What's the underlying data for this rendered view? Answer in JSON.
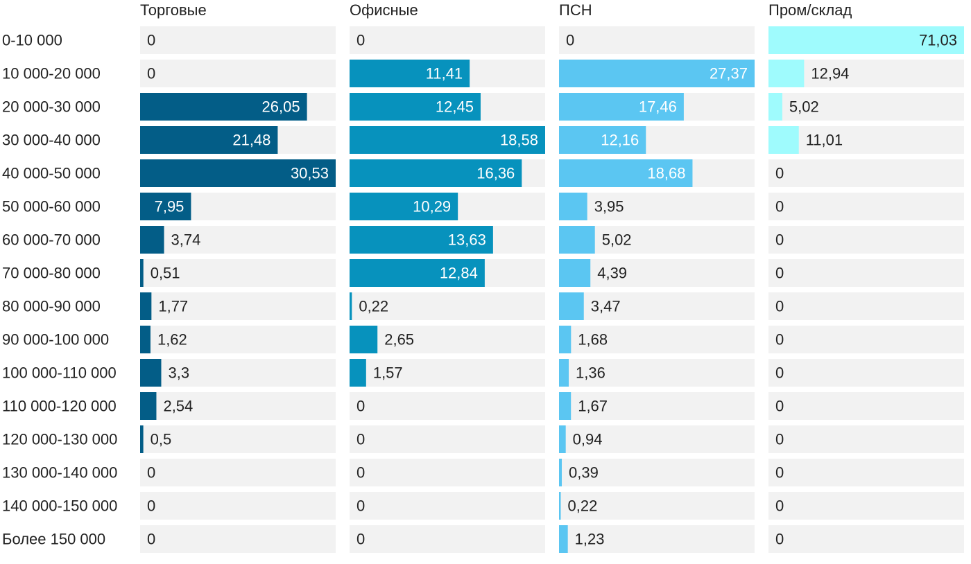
{
  "chart_data": {
    "type": "bar",
    "orientation": "horizontal",
    "layout": "small-multiples",
    "categories": [
      "0-10 000",
      "10 000-20 000",
      "20 000-30 000",
      "30 000-40 000",
      "40 000-50 000",
      "50 000-60 000",
      "60 000-70 000",
      "70 000-80 000",
      "80 000-90 000",
      "90 000-100 000",
      "100 000-110 000",
      "110 000-120 000",
      "120 000-130 000",
      "130 000-140 000",
      "140 000-150 000",
      "Более 150 000"
    ],
    "series": [
      {
        "name": "Торговые",
        "color": "#035d87",
        "values": [
          0,
          0,
          26.05,
          21.48,
          30.53,
          7.95,
          3.74,
          0.51,
          1.77,
          1.62,
          3.3,
          2.54,
          0.5,
          0,
          0,
          0
        ],
        "labels": [
          "0",
          "0",
          "26,05",
          "21,48",
          "30,53",
          "7,95",
          "3,74",
          "0,51",
          "1,77",
          "1,62",
          "3,3",
          "2,54",
          "0,5",
          "0",
          "0",
          "0"
        ]
      },
      {
        "name": "Офисные",
        "color": "#0792bd",
        "values": [
          0,
          11.41,
          12.45,
          18.58,
          16.36,
          10.29,
          13.63,
          12.84,
          0.22,
          2.65,
          1.57,
          0,
          0,
          0,
          0,
          0
        ],
        "labels": [
          "0",
          "11,41",
          "12,45",
          "18,58",
          "16,36",
          "10,29",
          "13,63",
          "12,84",
          "0,22",
          "2,65",
          "1,57",
          "0",
          "0",
          "0",
          "0",
          "0"
        ]
      },
      {
        "name": "ПСН",
        "color": "#5bc6f2",
        "values": [
          0,
          27.37,
          17.46,
          12.16,
          18.68,
          3.95,
          5.02,
          4.39,
          3.47,
          1.68,
          1.36,
          1.67,
          0.94,
          0.39,
          0.22,
          1.23
        ],
        "labels": [
          "0",
          "27,37",
          "17,46",
          "12,16",
          "18,68",
          "3,95",
          "5,02",
          "4,39",
          "3,47",
          "1,68",
          "1,36",
          "1,67",
          "0,94",
          "0,39",
          "0,22",
          "1,23"
        ]
      },
      {
        "name": "Пром/склад",
        "color": "#9ffbfd",
        "values": [
          71.03,
          12.94,
          5.02,
          11.01,
          0,
          0,
          0,
          0,
          0,
          0,
          0,
          0,
          0,
          0,
          0,
          0
        ],
        "labels": [
          "71,03",
          "12,94",
          "5,02",
          "11,01",
          "0",
          "0",
          "0",
          "0",
          "0",
          "0",
          "0",
          "0",
          "0",
          "0",
          "0",
          "0"
        ]
      }
    ],
    "track_color": "#f2f2f2",
    "title": "",
    "xlabel": "",
    "ylabel": "",
    "grid": false,
    "legend": "none"
  }
}
